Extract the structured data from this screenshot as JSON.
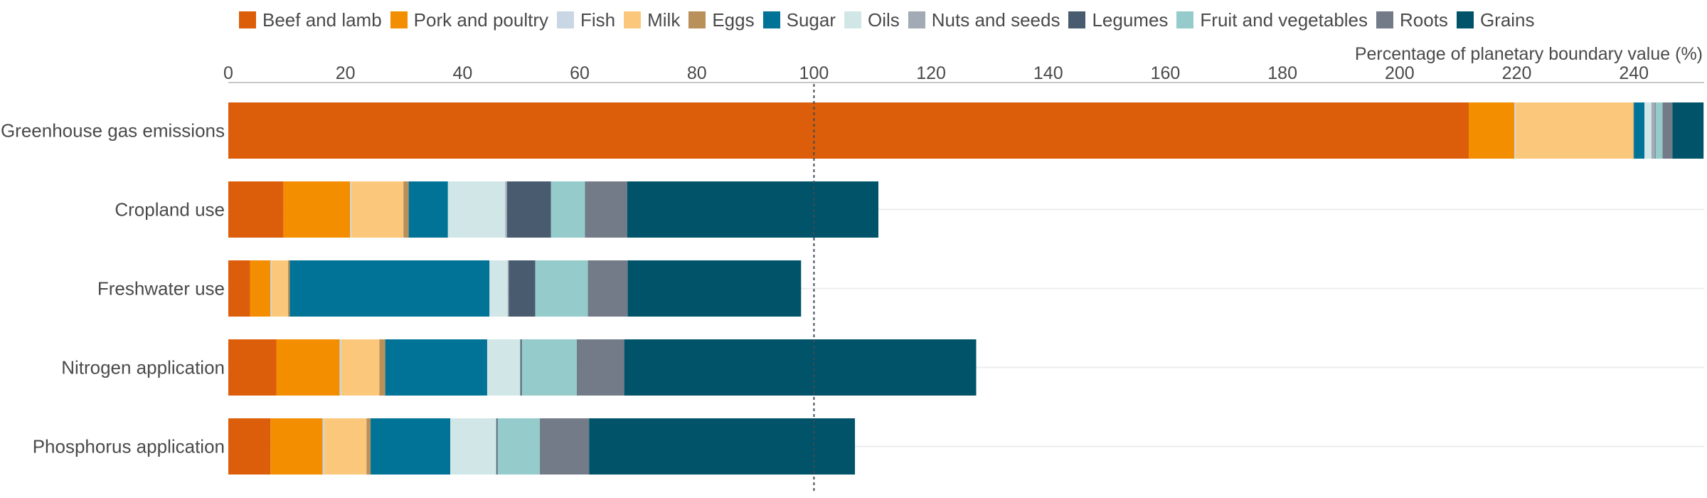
{
  "chart_data": {
    "type": "bar",
    "orientation": "horizontal",
    "stacked": true,
    "xlabel": "Percentage of planetary boundary value (%)",
    "xlim": [
      0,
      252
    ],
    "xticks": [
      0,
      20,
      40,
      60,
      80,
      100,
      120,
      140,
      160,
      180,
      200,
      220,
      240
    ],
    "reference_line": 100,
    "legend_position": "top",
    "categories": [
      "Greenhouse gas emissions",
      "Cropland use",
      "Freshwater use",
      "Nitrogen application",
      "Phosphorus application"
    ],
    "series": [
      {
        "name": "Beef and lamb",
        "color": "#dd5e0a",
        "values": [
          211.8,
          9.4,
          3.7,
          8.2,
          7.2
        ]
      },
      {
        "name": "Pork and poultry",
        "color": "#f28e00",
        "values": [
          7.8,
          11.4,
          3.5,
          10.8,
          8.9
        ]
      },
      {
        "name": "Fish",
        "color": "#c9d6e3",
        "values": [
          0.2,
          0.2,
          0.2,
          0.3,
          0.3
        ]
      },
      {
        "name": "Milk",
        "color": "#fbc87b",
        "values": [
          20.1,
          8.9,
          2.8,
          6.5,
          7.2
        ]
      },
      {
        "name": "Eggs",
        "color": "#b98f5a",
        "values": [
          0.1,
          0.9,
          0.3,
          1.0,
          0.7
        ]
      },
      {
        "name": "Sugar",
        "color": "#007396",
        "values": [
          1.8,
          6.7,
          34.1,
          17.4,
          13.6
        ]
      },
      {
        "name": "Oils",
        "color": "#d1e7e7",
        "values": [
          1.2,
          9.8,
          3.1,
          5.6,
          7.8
        ]
      },
      {
        "name": "Nuts and seeds",
        "color": "#a2aab5",
        "values": [
          0.6,
          0.3,
          0.2,
          0.1,
          0.1
        ]
      },
      {
        "name": "Legumes",
        "color": "#485b6f",
        "values": [
          0.1,
          7.5,
          4.5,
          0.2,
          0.2
        ]
      },
      {
        "name": "Fruit and vegetables",
        "color": "#95cbca",
        "values": [
          1.2,
          5.8,
          9.0,
          9.4,
          7.2
        ]
      },
      {
        "name": "Roots",
        "color": "#727b87",
        "values": [
          1.7,
          7.2,
          6.8,
          8.1,
          8.4
        ]
      },
      {
        "name": "Grains",
        "color": "#005369",
        "values": [
          5.3,
          42.9,
          29.6,
          60.1,
          45.4
        ]
      }
    ]
  }
}
